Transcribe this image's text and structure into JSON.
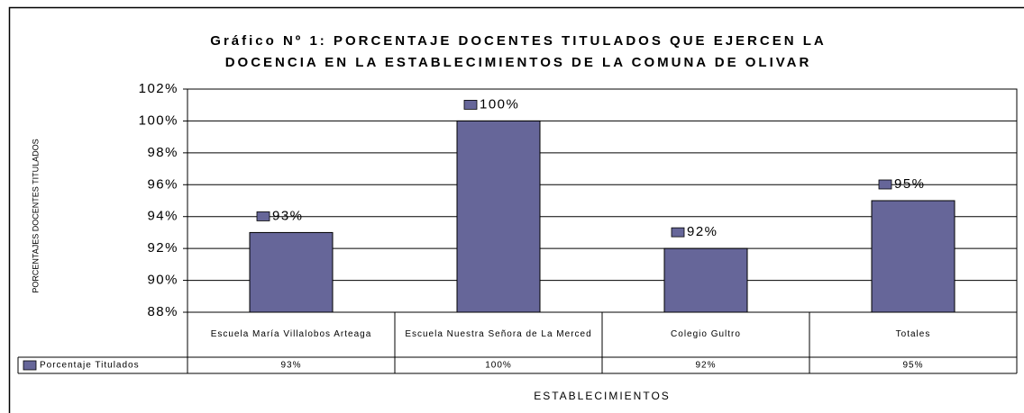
{
  "chart_data": {
    "type": "bar",
    "title": [
      "Gráfico Nº 1: PORCENTAJE DOCENTES TITULADOS QUE EJERCEN LA",
      "DOCENCIA EN LA ESTABLECIMIENTOS DE LA COMUNA DE OLIVAR"
    ],
    "y_label": "PORCENTAJES DOCENTES TITULADOS",
    "x_label": "ESTABLECIMIENTOS",
    "categories": [
      "Escuela María Villalobos Arteaga",
      "Escuela Nuestra Señora de La Merced",
      "Colegio Gultro",
      "Totales"
    ],
    "series": [
      {
        "name": "Porcentaje Titulados",
        "color": "#666699",
        "values": [
          93,
          100,
          92,
          95
        ],
        "value_labels": [
          "93%",
          "100%",
          "92%",
          "95%"
        ]
      }
    ],
    "ylim": [
      88,
      102
    ],
    "yticks": [
      {
        "value": 88,
        "label": "88%"
      },
      {
        "value": 90,
        "label": "90%"
      },
      {
        "value": 92,
        "label": "92%"
      },
      {
        "value": 94,
        "label": "94%"
      },
      {
        "value": 96,
        "label": "96%"
      },
      {
        "value": 98,
        "label": "98%"
      },
      {
        "value": 100,
        "label": "100%"
      },
      {
        "value": 102,
        "label": "102%"
      }
    ],
    "grid": true
  }
}
